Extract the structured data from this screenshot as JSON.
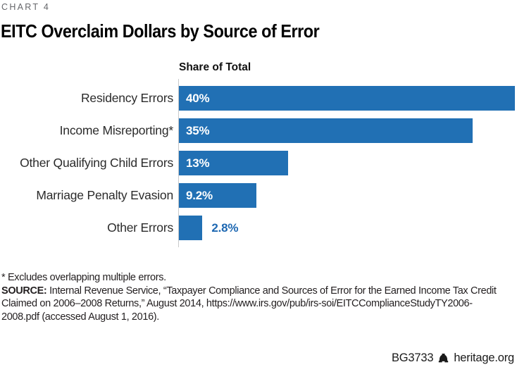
{
  "header": {
    "kicker": "CHART 4",
    "title": "EITC Overclaim Dollars by Source of Error"
  },
  "chart_data": {
    "type": "bar",
    "orientation": "horizontal",
    "title": "EITC Overclaim Dollars by Source of Error",
    "axis_title": "Share of Total",
    "categories": [
      "Residency Errors",
      "Income Misreporting*",
      "Other Qualifying Child Errors",
      "Marriage Penalty Evasion",
      "Other Errors"
    ],
    "values": [
      40,
      35,
      13,
      9.2,
      2.8
    ],
    "value_labels": [
      "40%",
      "35%",
      "13%",
      "9.2%",
      "2.8%"
    ],
    "xlim": [
      0,
      40
    ],
    "grid": false,
    "legend": false,
    "bar_color": "#2170b4",
    "inside_label_color": "#ffffff",
    "outside_label_color": "#1e68b2"
  },
  "footnotes": {
    "asterisk_note": "* Excludes overlapping multiple errors.",
    "source_label": "SOURCE:",
    "source_text": " Internal Revenue Service, “Taxpayer Compliance and Sources of Error for the Earned Income Tax Credit Claimed on 2006–2008 Returns,” August 2014, https://www.irs.gov/pub/irs-soi/EITCComplianceStudyTY2006-2008.pdf (accessed August 1, 2016)."
  },
  "footer": {
    "report_id": "BG3733",
    "logo_icon": "heritage-bell-icon",
    "site": "heritage.org"
  }
}
